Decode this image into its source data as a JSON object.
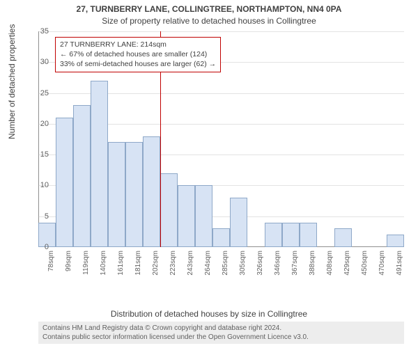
{
  "titles": {
    "line1": "27, TURNBERRY LANE, COLLINGTREE, NORTHAMPTON, NN4 0PA",
    "line2": "Size of property relative to detached houses in Collingtree"
  },
  "ylabel": "Number of detached properties",
  "xlabel": "Distribution of detached houses by size in Collingtree",
  "chart": {
    "type": "histogram",
    "ylim": [
      0,
      35
    ],
    "ytick_step": 5,
    "bar_fill": "#d7e3f4",
    "bar_stroke": "#8ea8c8",
    "background": "#ffffff",
    "grid_color": "#b0b0b0",
    "categories": [
      "78sqm",
      "99sqm",
      "119sqm",
      "140sqm",
      "161sqm",
      "181sqm",
      "202sqm",
      "223sqm",
      "243sqm",
      "264sqm",
      "285sqm",
      "305sqm",
      "326sqm",
      "346sqm",
      "367sqm",
      "388sqm",
      "408sqm",
      "429sqm",
      "450sqm",
      "470sqm",
      "491sqm"
    ],
    "values": [
      4,
      21,
      23,
      27,
      17,
      17,
      18,
      12,
      10,
      10,
      3,
      8,
      0,
      4,
      4,
      4,
      0,
      3,
      0,
      0,
      2
    ],
    "ref_line_index": 7,
    "ref_line_color": "#c00000"
  },
  "annotation": {
    "border_color": "#c00000",
    "lines": {
      "l1": "27 TURNBERRY LANE: 214sqm",
      "l2": "← 67% of detached houses are smaller (124)",
      "l3": "33% of semi-detached houses are larger (62) →"
    }
  },
  "footer": {
    "l1": "Contains HM Land Registry data © Crown copyright and database right 2024.",
    "l2": "Contains public sector information licensed under the Open Government Licence v3.0."
  }
}
